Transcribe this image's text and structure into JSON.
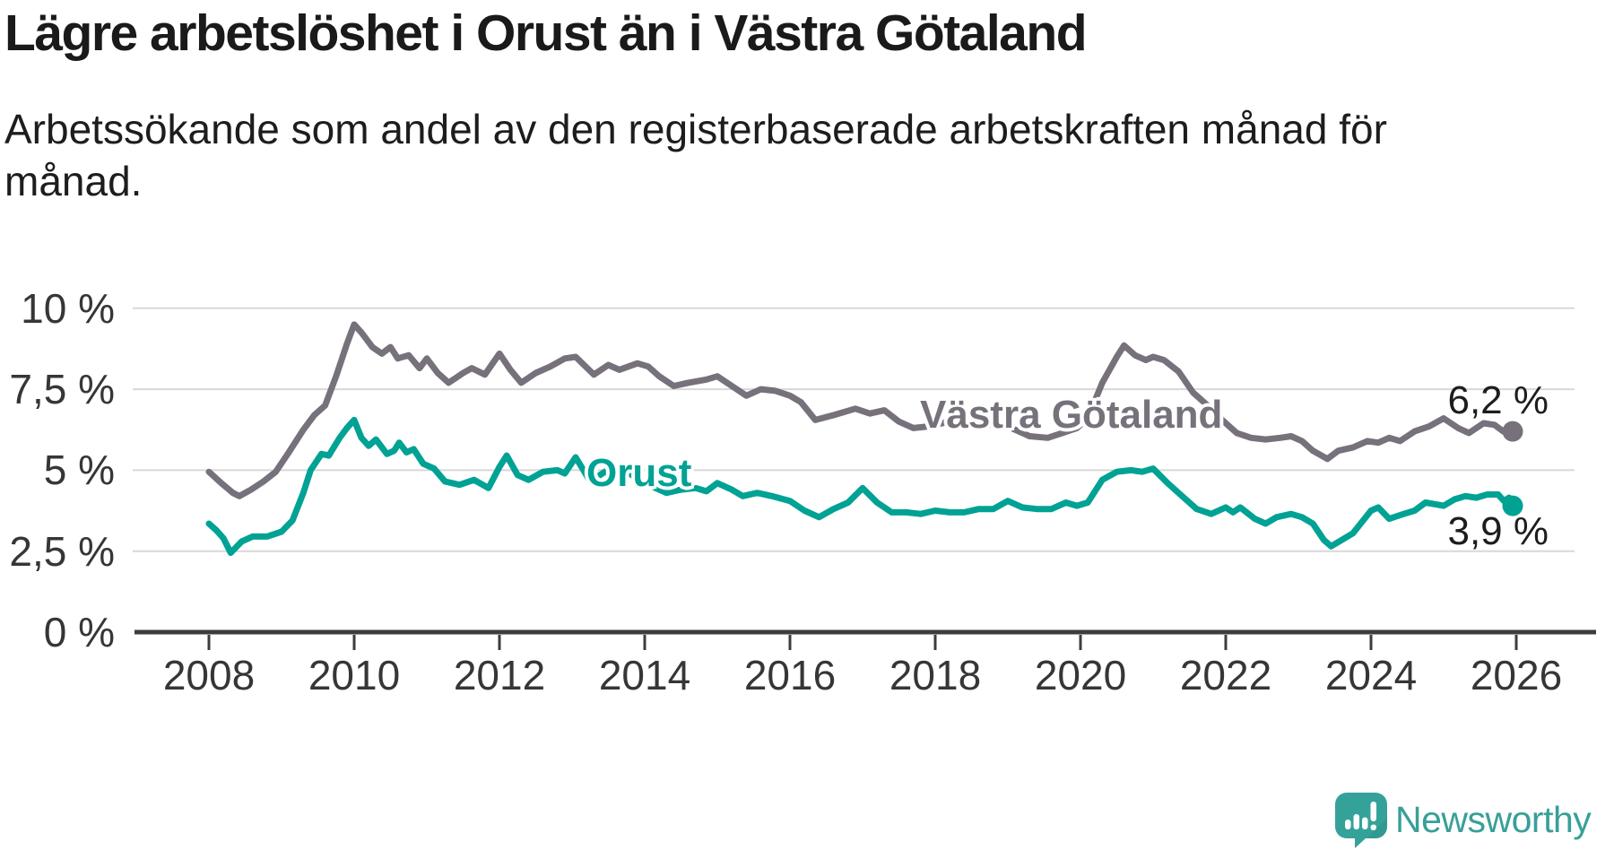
{
  "chart_data": {
    "type": "line",
    "title": "Lägre arbetslöshet i Orust än i Västra Götaland",
    "subtitle": "Arbetssökande som andel av den registerbaserade arbetskraften månad för månad.",
    "xlabel": "",
    "ylabel": "",
    "unit": "%",
    "grid": "horizontal",
    "legend_position": "inline-labels",
    "xlim": [
      2007.6,
      2026.75
    ],
    "ylim": [
      0,
      10.8
    ],
    "x_ticks": [
      2008,
      2010,
      2012,
      2014,
      2016,
      2018,
      2020,
      2022,
      2024,
      2026
    ],
    "x_tick_labels": [
      "2008",
      "2010",
      "2012",
      "2014",
      "2016",
      "2018",
      "2020",
      "2022",
      "2024",
      "2026"
    ],
    "y_ticks": [
      0,
      2.5,
      5,
      7.5,
      10
    ],
    "y_tick_labels": [
      "0 %",
      "2,5 %",
      "5 %",
      "7,5 %",
      "10 %"
    ],
    "colors": {
      "grid": "#d8d8d8",
      "axis": "#3d3d3d",
      "tick_text": "#363636"
    },
    "series": [
      {
        "name": "Västra Götaland",
        "color": "#76717B",
        "end_label": "6,2 %",
        "end_value": 6.2,
        "points": [
          [
            2008.0,
            4.95
          ],
          [
            2008.17,
            4.6
          ],
          [
            2008.33,
            4.3
          ],
          [
            2008.42,
            4.2
          ],
          [
            2008.58,
            4.4
          ],
          [
            2008.75,
            4.65
          ],
          [
            2008.92,
            4.95
          ],
          [
            2009.1,
            5.55
          ],
          [
            2009.3,
            6.25
          ],
          [
            2009.45,
            6.7
          ],
          [
            2009.6,
            7.0
          ],
          [
            2009.75,
            7.9
          ],
          [
            2009.9,
            8.9
          ],
          [
            2010.0,
            9.5
          ],
          [
            2010.1,
            9.25
          ],
          [
            2010.25,
            8.8
          ],
          [
            2010.38,
            8.6
          ],
          [
            2010.5,
            8.8
          ],
          [
            2010.6,
            8.45
          ],
          [
            2010.75,
            8.55
          ],
          [
            2010.9,
            8.15
          ],
          [
            2011.0,
            8.45
          ],
          [
            2011.15,
            8.0
          ],
          [
            2011.3,
            7.7
          ],
          [
            2011.5,
            8.0
          ],
          [
            2011.62,
            8.15
          ],
          [
            2011.8,
            7.95
          ],
          [
            2012.0,
            8.6
          ],
          [
            2012.15,
            8.1
          ],
          [
            2012.3,
            7.7
          ],
          [
            2012.5,
            8.0
          ],
          [
            2012.7,
            8.2
          ],
          [
            2012.9,
            8.45
          ],
          [
            2013.05,
            8.5
          ],
          [
            2013.3,
            7.95
          ],
          [
            2013.5,
            8.25
          ],
          [
            2013.65,
            8.1
          ],
          [
            2013.9,
            8.3
          ],
          [
            2014.05,
            8.2
          ],
          [
            2014.2,
            7.9
          ],
          [
            2014.4,
            7.6
          ],
          [
            2014.6,
            7.7
          ],
          [
            2014.85,
            7.8
          ],
          [
            2015.0,
            7.9
          ],
          [
            2015.2,
            7.6
          ],
          [
            2015.4,
            7.3
          ],
          [
            2015.6,
            7.5
          ],
          [
            2015.8,
            7.45
          ],
          [
            2016.0,
            7.3
          ],
          [
            2016.15,
            7.1
          ],
          [
            2016.35,
            6.55
          ],
          [
            2016.6,
            6.7
          ],
          [
            2016.9,
            6.9
          ],
          [
            2017.1,
            6.75
          ],
          [
            2017.3,
            6.85
          ],
          [
            2017.5,
            6.5
          ],
          [
            2017.7,
            6.3
          ],
          [
            2017.9,
            6.35
          ],
          [
            2018.1,
            6.45
          ],
          [
            2018.25,
            6.55
          ],
          [
            2018.45,
            6.35
          ],
          [
            2018.65,
            6.4
          ],
          [
            2018.85,
            6.4
          ],
          [
            2019.05,
            6.3
          ],
          [
            2019.3,
            6.05
          ],
          [
            2019.55,
            6.0
          ],
          [
            2019.75,
            6.15
          ],
          [
            2019.95,
            6.3
          ],
          [
            2020.1,
            6.6
          ],
          [
            2020.3,
            7.7
          ],
          [
            2020.5,
            8.5
          ],
          [
            2020.6,
            8.85
          ],
          [
            2020.75,
            8.55
          ],
          [
            2020.9,
            8.4
          ],
          [
            2021.0,
            8.5
          ],
          [
            2021.15,
            8.4
          ],
          [
            2021.35,
            8.05
          ],
          [
            2021.55,
            7.4
          ],
          [
            2021.75,
            7.0
          ],
          [
            2021.95,
            6.55
          ],
          [
            2022.15,
            6.15
          ],
          [
            2022.35,
            6.0
          ],
          [
            2022.55,
            5.95
          ],
          [
            2022.75,
            6.0
          ],
          [
            2022.9,
            6.05
          ],
          [
            2023.05,
            5.9
          ],
          [
            2023.2,
            5.6
          ],
          [
            2023.4,
            5.35
          ],
          [
            2023.55,
            5.6
          ],
          [
            2023.75,
            5.7
          ],
          [
            2023.95,
            5.9
          ],
          [
            2024.1,
            5.85
          ],
          [
            2024.25,
            6.0
          ],
          [
            2024.4,
            5.9
          ],
          [
            2024.6,
            6.2
          ],
          [
            2024.8,
            6.35
          ],
          [
            2025.0,
            6.6
          ],
          [
            2025.2,
            6.3
          ],
          [
            2025.35,
            6.15
          ],
          [
            2025.55,
            6.45
          ],
          [
            2025.7,
            6.4
          ],
          [
            2025.82,
            6.2
          ],
          [
            2025.9,
            6.3
          ],
          [
            2025.95,
            6.2
          ]
        ]
      },
      {
        "name": "Orust",
        "color": "#00A294",
        "end_label": "3,9 %",
        "end_value": 3.9,
        "points": [
          [
            2008.0,
            3.35
          ],
          [
            2008.1,
            3.15
          ],
          [
            2008.2,
            2.9
          ],
          [
            2008.3,
            2.45
          ],
          [
            2008.45,
            2.8
          ],
          [
            2008.6,
            2.95
          ],
          [
            2008.8,
            2.95
          ],
          [
            2009.0,
            3.1
          ],
          [
            2009.15,
            3.45
          ],
          [
            2009.3,
            4.3
          ],
          [
            2009.4,
            5.0
          ],
          [
            2009.55,
            5.5
          ],
          [
            2009.65,
            5.45
          ],
          [
            2009.8,
            6.0
          ],
          [
            2009.9,
            6.3
          ],
          [
            2010.0,
            6.55
          ],
          [
            2010.1,
            6.0
          ],
          [
            2010.2,
            5.75
          ],
          [
            2010.3,
            5.95
          ],
          [
            2010.45,
            5.5
          ],
          [
            2010.55,
            5.6
          ],
          [
            2010.62,
            5.85
          ],
          [
            2010.72,
            5.55
          ],
          [
            2010.82,
            5.65
          ],
          [
            2010.95,
            5.2
          ],
          [
            2011.1,
            5.05
          ],
          [
            2011.25,
            4.65
          ],
          [
            2011.45,
            4.55
          ],
          [
            2011.65,
            4.7
          ],
          [
            2011.85,
            4.45
          ],
          [
            2012.0,
            5.1
          ],
          [
            2012.1,
            5.45
          ],
          [
            2012.25,
            4.85
          ],
          [
            2012.4,
            4.7
          ],
          [
            2012.6,
            4.95
          ],
          [
            2012.8,
            5.0
          ],
          [
            2012.9,
            4.9
          ],
          [
            2013.05,
            5.4
          ],
          [
            2013.25,
            4.65
          ],
          [
            2013.45,
            4.95
          ],
          [
            2013.6,
            4.75
          ],
          [
            2013.8,
            4.9
          ],
          [
            2013.95,
            4.6
          ],
          [
            2014.1,
            4.5
          ],
          [
            2014.3,
            4.3
          ],
          [
            2014.5,
            4.4
          ],
          [
            2014.7,
            4.45
          ],
          [
            2014.85,
            4.35
          ],
          [
            2015.0,
            4.6
          ],
          [
            2015.2,
            4.4
          ],
          [
            2015.35,
            4.2
          ],
          [
            2015.55,
            4.3
          ],
          [
            2015.75,
            4.2
          ],
          [
            2016.0,
            4.05
          ],
          [
            2016.2,
            3.75
          ],
          [
            2016.4,
            3.55
          ],
          [
            2016.6,
            3.8
          ],
          [
            2016.8,
            4.0
          ],
          [
            2017.0,
            4.45
          ],
          [
            2017.2,
            4.0
          ],
          [
            2017.4,
            3.7
          ],
          [
            2017.6,
            3.7
          ],
          [
            2017.8,
            3.65
          ],
          [
            2018.0,
            3.75
          ],
          [
            2018.2,
            3.7
          ],
          [
            2018.4,
            3.7
          ],
          [
            2018.6,
            3.8
          ],
          [
            2018.8,
            3.8
          ],
          [
            2019.0,
            4.05
          ],
          [
            2019.2,
            3.85
          ],
          [
            2019.4,
            3.8
          ],
          [
            2019.6,
            3.8
          ],
          [
            2019.8,
            4.0
          ],
          [
            2019.95,
            3.9
          ],
          [
            2020.1,
            4.0
          ],
          [
            2020.3,
            4.7
          ],
          [
            2020.5,
            4.95
          ],
          [
            2020.7,
            5.0
          ],
          [
            2020.85,
            4.95
          ],
          [
            2021.0,
            5.05
          ],
          [
            2021.2,
            4.6
          ],
          [
            2021.4,
            4.2
          ],
          [
            2021.6,
            3.8
          ],
          [
            2021.8,
            3.65
          ],
          [
            2022.0,
            3.85
          ],
          [
            2022.1,
            3.7
          ],
          [
            2022.2,
            3.85
          ],
          [
            2022.4,
            3.5
          ],
          [
            2022.55,
            3.35
          ],
          [
            2022.7,
            3.55
          ],
          [
            2022.9,
            3.65
          ],
          [
            2023.05,
            3.55
          ],
          [
            2023.2,
            3.35
          ],
          [
            2023.35,
            2.85
          ],
          [
            2023.45,
            2.65
          ],
          [
            2023.6,
            2.85
          ],
          [
            2023.75,
            3.05
          ],
          [
            2024.0,
            3.75
          ],
          [
            2024.1,
            3.85
          ],
          [
            2024.25,
            3.5
          ],
          [
            2024.45,
            3.65
          ],
          [
            2024.6,
            3.75
          ],
          [
            2024.75,
            4.0
          ],
          [
            2025.0,
            3.9
          ],
          [
            2025.15,
            4.1
          ],
          [
            2025.3,
            4.2
          ],
          [
            2025.45,
            4.15
          ],
          [
            2025.6,
            4.25
          ],
          [
            2025.75,
            4.25
          ],
          [
            2025.83,
            4.05
          ],
          [
            2025.9,
            4.15
          ],
          [
            2025.95,
            3.9
          ]
        ]
      }
    ]
  },
  "branding": {
    "name": "Newsworthy",
    "color": "#37A097"
  }
}
